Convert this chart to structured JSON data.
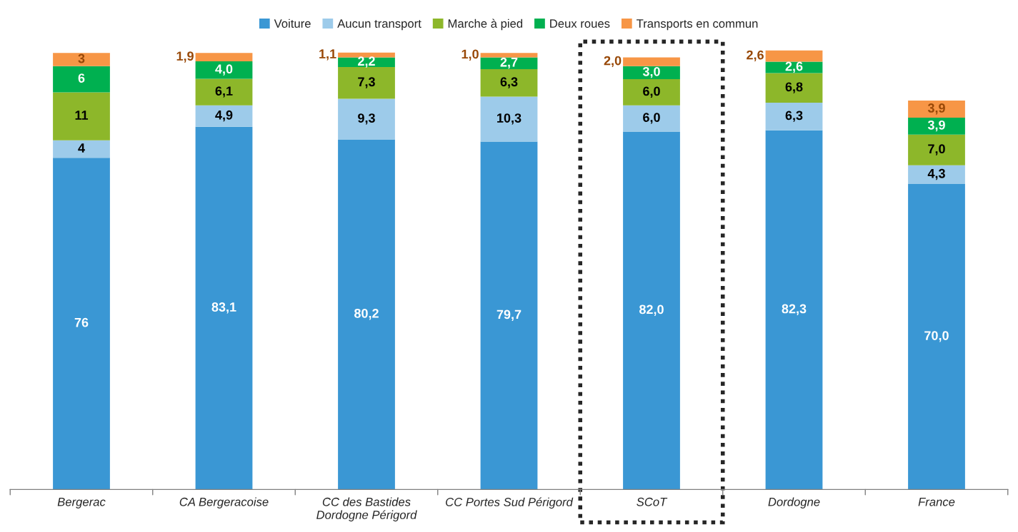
{
  "chart_data": {
    "type": "bar",
    "stacked": true,
    "legend": "top",
    "grid": false,
    "categories": [
      "Bergerac",
      "CA Bergeracoise",
      "CC des Bastides\nDordogne Périgord",
      "CC Portes Sud Périgord",
      "SCoT",
      "Dordogne",
      "France"
    ],
    "series": [
      {
        "name": "Voiture",
        "color": "#3a97d4",
        "values": [
          76,
          83.1,
          80.2,
          79.7,
          82.0,
          82.3,
          70.0
        ],
        "value_labels": [
          "76",
          "83,1",
          "80,2",
          "79,7",
          "82,0",
          "82,3",
          "70,0"
        ]
      },
      {
        "name": "Aucun transport",
        "color": "#9dcbea",
        "values": [
          4,
          4.9,
          9.3,
          10.3,
          6.0,
          6.3,
          4.3
        ],
        "value_labels": [
          "4",
          "4,9",
          "9,3",
          "10,3",
          "6,0",
          "6,3",
          "4,3"
        ]
      },
      {
        "name": "Marche à pied",
        "color": "#8db72a",
        "values": [
          11,
          6.1,
          7.3,
          6.3,
          6.0,
          6.8,
          7.0
        ],
        "value_labels": [
          "11",
          "6,1",
          "7,3",
          "6,3",
          "6,0",
          "6,8",
          "7,0"
        ]
      },
      {
        "name": "Deux roues",
        "color": "#00b050",
        "values": [
          6,
          4.0,
          2.2,
          2.7,
          3.0,
          2.6,
          3.9
        ],
        "value_labels": [
          "6",
          "4,0",
          "2,2",
          "2,7",
          "3,0",
          "2,6",
          "3,9"
        ]
      },
      {
        "name": "Transports en commun",
        "color": "#f79646",
        "values": [
          3,
          1.9,
          1.1,
          1.0,
          2.0,
          2.6,
          3.9
        ],
        "value_labels": [
          "3",
          "1,9",
          "1,1",
          "1,0",
          "2,0",
          "2,6",
          "3,9"
        ]
      }
    ]
  }
}
